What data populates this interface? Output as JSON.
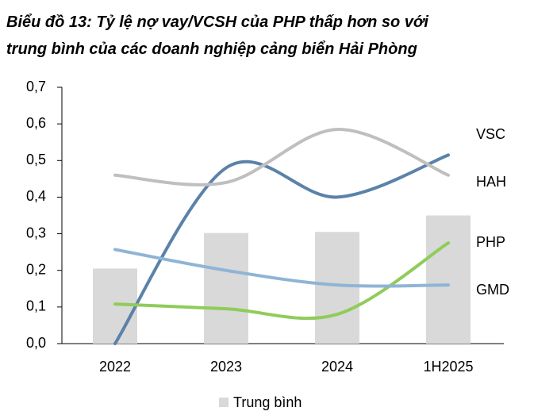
{
  "chart_data": {
    "type": "bar-line",
    "title": [
      "Biểu đồ 13: Tỷ lệ nợ vay/VCSH của PHP thấp hơn so với",
      "trung bình của các doanh nghiệp cảng biển Hải Phòng"
    ],
    "categories": [
      "2022",
      "2023",
      "2024",
      "1H2025"
    ],
    "series": [
      {
        "name": "Trung bình",
        "kind": "bar",
        "color": "#d9d9d9",
        "values": [
          0.205,
          0.302,
          0.305,
          0.35
        ]
      },
      {
        "name": "VSC",
        "kind": "line",
        "color": "#5b82a8",
        "values": [
          0.0,
          0.48,
          0.4,
          0.515
        ]
      },
      {
        "name": "HAH",
        "kind": "line",
        "color": "#bfbfbf",
        "values": [
          0.46,
          0.44,
          0.585,
          0.46
        ]
      },
      {
        "name": "PHP",
        "kind": "line",
        "color": "#8fcc5a",
        "values": [
          0.108,
          0.095,
          0.08,
          0.275
        ]
      },
      {
        "name": "GMD",
        "kind": "line",
        "color": "#8fb4d6",
        "values": [
          0.257,
          0.2,
          0.16,
          0.16
        ]
      }
    ],
    "ylim": [
      0,
      0.7
    ],
    "yticks": [
      {
        "value": 0,
        "label": "0,0"
      },
      {
        "value": 0.1,
        "label": "0,1"
      },
      {
        "value": 0.2,
        "label": "0,2"
      },
      {
        "value": 0.3,
        "label": "0,3"
      },
      {
        "value": 0.4,
        "label": "0,4"
      },
      {
        "value": 0.5,
        "label": "0,5"
      },
      {
        "value": 0.6,
        "label": "0,6"
      },
      {
        "value": 0.7,
        "label": "0,7"
      }
    ],
    "legend": "bottom"
  }
}
